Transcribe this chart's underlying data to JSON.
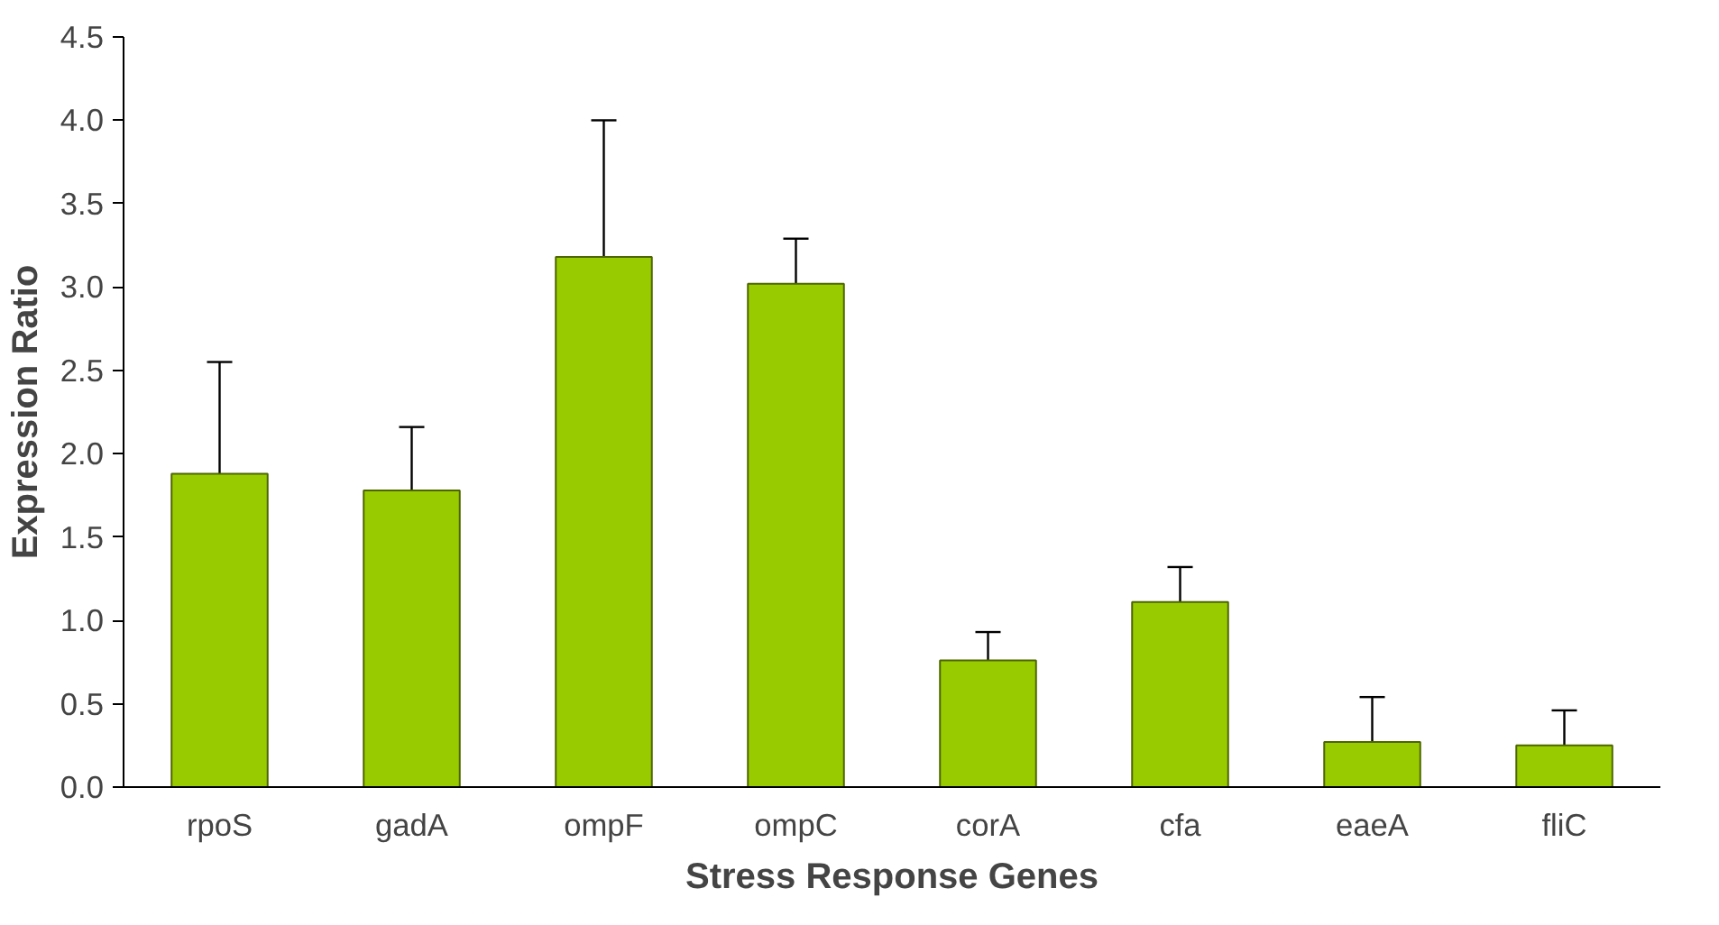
{
  "chart_data": {
    "type": "bar",
    "xlabel": "Stress Response Genes",
    "ylabel": "Expression Ratio",
    "categories": [
      "rpoS",
      "gadA",
      "ompF",
      "ompC",
      "corA",
      "cfa",
      "eaeA",
      "fliC"
    ],
    "values": [
      1.88,
      1.78,
      3.18,
      3.02,
      0.76,
      1.11,
      0.27,
      0.25
    ],
    "errors": [
      [
        1.88,
        2.55
      ],
      [
        1.78,
        2.16
      ],
      [
        3.18,
        4.0
      ],
      [
        3.02,
        3.29
      ],
      [
        0.76,
        0.93
      ],
      [
        1.11,
        1.32
      ],
      [
        0.27,
        0.54
      ],
      [
        0.25,
        0.46
      ]
    ],
    "color": "#99cc00",
    "ylim": [
      0,
      4.5
    ],
    "yticks": [
      {
        "value": 0,
        "label": "0.0"
      },
      {
        "value": 0.5,
        "label": "0.5"
      },
      {
        "value": 1,
        "label": "1.0"
      },
      {
        "value": 1.5,
        "label": "1.5"
      },
      {
        "value": 2,
        "label": "2.0"
      },
      {
        "value": 2.5,
        "label": "2.5"
      },
      {
        "value": 3,
        "label": "3.0"
      },
      {
        "value": 3.5,
        "label": "3.5"
      },
      {
        "value": 4,
        "label": "4.0"
      },
      {
        "value": 4.5,
        "label": "4.5"
      }
    ],
    "grid": false
  }
}
